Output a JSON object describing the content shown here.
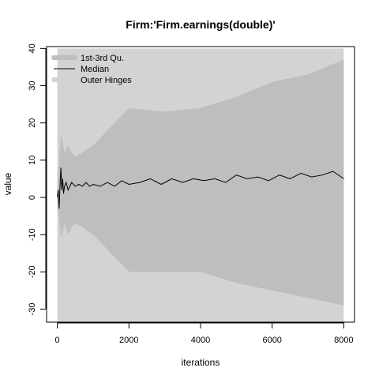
{
  "chart_data": {
    "type": "area",
    "title": "Firm:'Firm.earnings(double)'",
    "xlabel": "iterations",
    "ylabel": "value",
    "xlim": [
      -300,
      8300
    ],
    "ylim": [
      -33.5,
      40.5
    ],
    "x_ticks": [
      0,
      2000,
      4000,
      6000,
      8000
    ],
    "y_ticks": [
      -30,
      -20,
      -10,
      0,
      10,
      20,
      30,
      40
    ],
    "legend_position": "top-left",
    "legend": [
      "1st-3rd Qu.",
      "Median",
      "Outer Hinges"
    ],
    "colors": {
      "outer_hinges": "#d3d3d3",
      "quartiles": "#bebebe",
      "median": "#000000"
    },
    "series": [
      {
        "name": "Outer Hinges",
        "x": [
          0,
          50,
          100,
          200,
          300,
          400,
          500,
          700,
          1000,
          1500,
          2000,
          3000,
          4000,
          5000,
          6000,
          7000,
          8000
        ],
        "upper": [
          40,
          40,
          40,
          40,
          40,
          40,
          40,
          40,
          40,
          40,
          40,
          40,
          40,
          40,
          40,
          40,
          40
        ],
        "lower": [
          -33.5,
          -33.5,
          -33.5,
          -33.5,
          -33.5,
          -33.5,
          -33.5,
          -33.5,
          -33.5,
          -33.5,
          -33.5,
          -33.5,
          -33.5,
          -33.5,
          -33.5,
          -33.5,
          -33.5
        ]
      },
      {
        "name": "1st-3rd Qu.",
        "x": [
          0,
          50,
          100,
          200,
          300,
          400,
          500,
          700,
          1000,
          1500,
          2000,
          3000,
          4000,
          5000,
          6000,
          7000,
          8000
        ],
        "upper": [
          3,
          10,
          17,
          12,
          14,
          12,
          11,
          12,
          14,
          19,
          24,
          23,
          24,
          27,
          31,
          33,
          37
        ],
        "lower": [
          -3,
          -5,
          -11,
          -7,
          -10,
          -8,
          -7,
          -8,
          -10,
          -15,
          -20,
          -20,
          -20,
          -23,
          -25,
          -27,
          -29
        ]
      },
      {
        "name": "Median",
        "x": [
          0,
          25,
          50,
          75,
          100,
          125,
          150,
          175,
          200,
          250,
          300,
          400,
          500,
          600,
          700,
          800,
          900,
          1000,
          1200,
          1400,
          1600,
          1800,
          2000,
          2300,
          2600,
          2900,
          3200,
          3500,
          3800,
          4100,
          4400,
          4700,
          5000,
          5300,
          5600,
          5900,
          6200,
          6500,
          6800,
          7100,
          7400,
          7700,
          8000
        ],
        "values": [
          0,
          2,
          -3,
          3,
          8,
          2,
          5,
          1,
          3,
          4,
          2,
          4,
          3,
          3.5,
          3,
          4,
          3,
          3.5,
          3,
          4,
          3,
          4.5,
          3.5,
          4,
          5,
          3.5,
          5,
          4,
          5,
          4.5,
          5,
          4,
          6,
          5,
          5.5,
          4.5,
          6,
          5,
          6.5,
          5.5,
          6,
          7,
          5
        ]
      }
    ]
  }
}
